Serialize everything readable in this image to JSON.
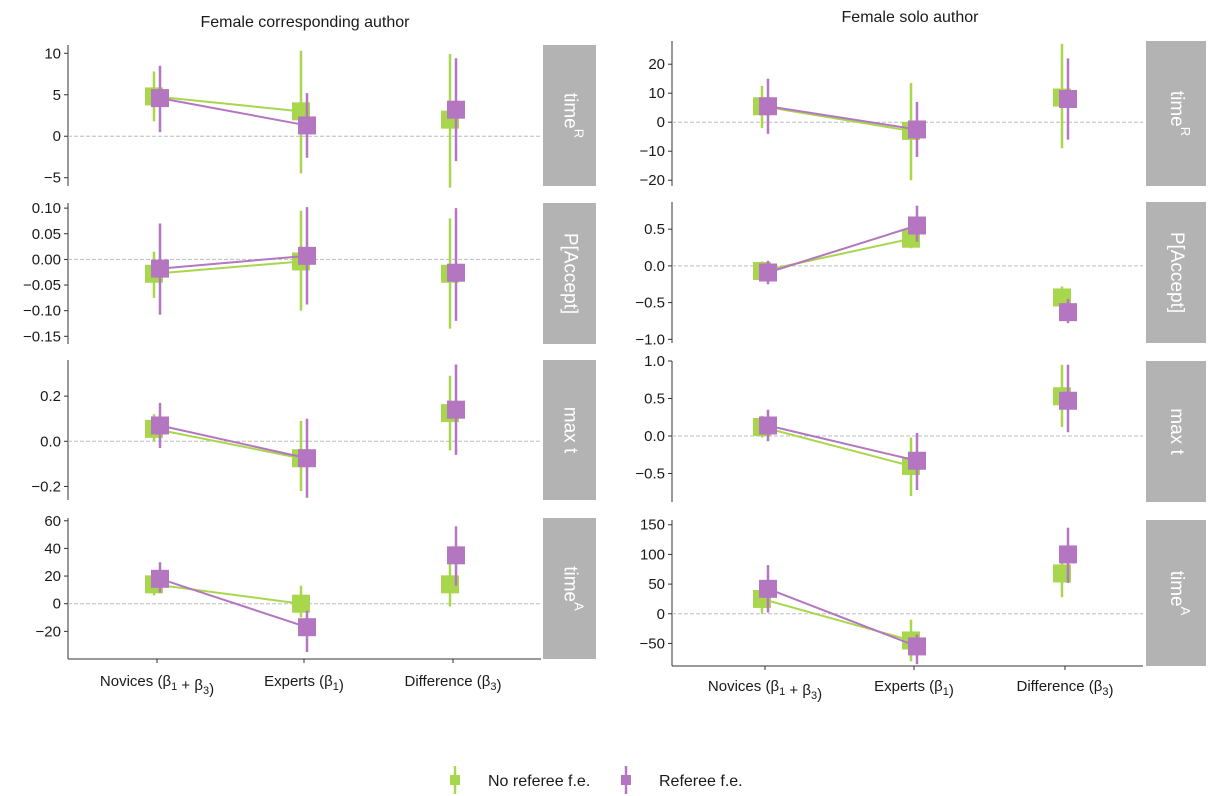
{
  "chart_data": {
    "type": "scatter",
    "x_categories": [
      "Novices (β1 + β3)",
      "Experts (β1)",
      "Difference (β3)"
    ],
    "legend": {
      "placement": "bottom",
      "entries": [
        {
          "key": "no_fe",
          "label": "No referee f.e.",
          "color": "#a8d64c"
        },
        {
          "key": "fe",
          "label": "Referee f.e.",
          "color": "#b476c0"
        }
      ]
    },
    "strip_color": "#b3b3b3",
    "zero_line": true,
    "panels": [
      {
        "title": "Female corresponding author",
        "facets": [
          {
            "strip": "time^R",
            "ylim": [
              -6,
              11
            ],
            "ticks": [
              "10",
              "5",
              "0",
              "−5"
            ],
            "tick_values": [
              10,
              5,
              0,
              -5
            ],
            "series": {
              "no_fe": [
                {
                  "est": 4.8,
                  "lo": 1.8,
                  "hi": 7.8
                },
                {
                  "est": 3.0,
                  "lo": -4.5,
                  "hi": 10.3
                },
                {
                  "est": 2.0,
                  "lo": -6.2,
                  "hi": 9.9
                }
              ],
              "fe": [
                {
                  "est": 4.6,
                  "lo": 0.5,
                  "hi": 8.5
                },
                {
                  "est": 1.3,
                  "lo": -2.6,
                  "hi": 5.2
                },
                {
                  "est": 3.2,
                  "lo": -3.0,
                  "hi": 9.4
                }
              ]
            }
          },
          {
            "strip": "P[Accept]",
            "ylim": [
              -0.165,
              0.11
            ],
            "ticks": [
              "0.10",
              "0.05",
              "0.00",
              "−0.05",
              "−0.10",
              "−0.15"
            ],
            "tick_values": [
              0.1,
              0.05,
              0.0,
              -0.05,
              -0.1,
              -0.15
            ],
            "series": {
              "no_fe": [
                {
                  "est": -0.028,
                  "lo": -0.075,
                  "hi": 0.015
                },
                {
                  "est": -0.004,
                  "lo": -0.1,
                  "hi": 0.095
                },
                {
                  "est": -0.028,
                  "lo": -0.135,
                  "hi": 0.08
                }
              ],
              "fe": [
                {
                  "est": -0.018,
                  "lo": -0.108,
                  "hi": 0.07
                },
                {
                  "est": 0.007,
                  "lo": -0.088,
                  "hi": 0.102
                },
                {
                  "est": -0.026,
                  "lo": -0.12,
                  "hi": 0.1
                }
              ]
            }
          },
          {
            "strip": "max t",
            "ylim": [
              -0.26,
              0.36
            ],
            "ticks": [
              "0.2",
              "0.0",
              "−0.2"
            ],
            "tick_values": [
              0.2,
              0.0,
              -0.2
            ],
            "series": {
              "no_fe": [
                {
                  "est": 0.055,
                  "lo": 0.0,
                  "hi": 0.12
                },
                {
                  "est": -0.075,
                  "lo": -0.22,
                  "hi": 0.09
                },
                {
                  "est": 0.125,
                  "lo": -0.04,
                  "hi": 0.29
                }
              ],
              "fe": [
                {
                  "est": 0.07,
                  "lo": -0.03,
                  "hi": 0.17
                },
                {
                  "est": -0.075,
                  "lo": -0.25,
                  "hi": 0.1
                },
                {
                  "est": 0.14,
                  "lo": -0.06,
                  "hi": 0.34
                }
              ]
            }
          },
          {
            "strip": "time^A",
            "ylim": [
              -40,
              62
            ],
            "ticks": [
              "60",
              "40",
              "20",
              "0",
              "−20"
            ],
            "tick_values": [
              60,
              40,
              20,
              0,
              -20
            ],
            "series": {
              "no_fe": [
                {
                  "est": 14,
                  "lo": 6,
                  "hi": 24
                },
                {
                  "est": 0,
                  "lo": -10,
                  "hi": 13
                },
                {
                  "est": 14,
                  "lo": -2,
                  "hi": 40
                }
              ],
              "fe": [
                {
                  "est": 18,
                  "lo": 8,
                  "hi": 30
                },
                {
                  "est": -17,
                  "lo": -35,
                  "hi": -5
                },
                {
                  "est": 35,
                  "lo": 13,
                  "hi": 56
                }
              ]
            }
          }
        ]
      },
      {
        "title": "Female solo author",
        "facets": [
          {
            "strip": "time^R",
            "ylim": [
              -22,
              28
            ],
            "ticks": [
              "20",
              "10",
              "0",
              "−10",
              "−20"
            ],
            "tick_values": [
              20,
              10,
              0,
              -10,
              -20
            ],
            "series": {
              "no_fe": [
                {
                  "est": 5.5,
                  "lo": -2,
                  "hi": 12.5
                },
                {
                  "est": -3,
                  "lo": -20,
                  "hi": 13.5
                },
                {
                  "est": 8.5,
                  "lo": -9,
                  "hi": 27
                }
              ],
              "fe": [
                {
                  "est": 5.5,
                  "lo": -4,
                  "hi": 15
                },
                {
                  "est": -2.5,
                  "lo": -12,
                  "hi": 7
                },
                {
                  "est": 8,
                  "lo": -6,
                  "hi": 22
                }
              ]
            }
          },
          {
            "strip": "P[Accept]",
            "ylim": [
              -1.05,
              0.87
            ],
            "ticks": [
              "0.5",
              "0.0",
              "−0.5",
              "−1.0"
            ],
            "tick_values": [
              0.5,
              0.0,
              -0.5,
              -1.0
            ],
            "series": {
              "no_fe": [
                {
                  "est": -0.07,
                  "lo": -0.2,
                  "hi": 0.06
                },
                {
                  "est": 0.37,
                  "lo": 0.24,
                  "hi": 0.5
                },
                {
                  "est": -0.43,
                  "lo": -0.58,
                  "hi": -0.28
                }
              ],
              "fe": [
                {
                  "est": -0.09,
                  "lo": -0.25,
                  "hi": 0.07
                },
                {
                  "est": 0.55,
                  "lo": 0.33,
                  "hi": 0.82
                },
                {
                  "est": -0.63,
                  "lo": -0.78,
                  "hi": -0.45
                }
              ]
            }
          },
          {
            "strip": "max t",
            "ylim": [
              -0.88,
              1.0
            ],
            "ticks": [
              "1.0",
              "0.5",
              "0.0",
              "−0.5"
            ],
            "tick_values": [
              1.0,
              0.5,
              0.0,
              -0.5
            ],
            "series": {
              "no_fe": [
                {
                  "est": 0.12,
                  "lo": -0.02,
                  "hi": 0.27
                },
                {
                  "est": -0.4,
                  "lo": -0.8,
                  "hi": -0.02
                },
                {
                  "est": 0.53,
                  "lo": 0.12,
                  "hi": 0.95
                }
              ],
              "fe": [
                {
                  "est": 0.14,
                  "lo": -0.07,
                  "hi": 0.35
                },
                {
                  "est": -0.33,
                  "lo": -0.72,
                  "hi": 0.04
                },
                {
                  "est": 0.47,
                  "lo": 0.05,
                  "hi": 0.95
                }
              ]
            }
          },
          {
            "strip": "time^A",
            "ylim": [
              -88,
              158
            ],
            "ticks": [
              "150",
              "100",
              "50",
              "0",
              "−50"
            ],
            "tick_values": [
              150,
              100,
              50,
              0,
              -50
            ],
            "series": {
              "no_fe": [
                {
                  "est": 25,
                  "lo": 0,
                  "hi": 50
                },
                {
                  "est": -45,
                  "lo": -80,
                  "hi": -10
                },
                {
                  "est": 68,
                  "lo": 28,
                  "hi": 100
                }
              ],
              "fe": [
                {
                  "est": 42,
                  "lo": 2,
                  "hi": 82
                },
                {
                  "est": -55,
                  "lo": -85,
                  "hi": -35
                },
                {
                  "est": 100,
                  "lo": 52,
                  "hi": 145
                }
              ]
            }
          }
        ]
      }
    ]
  }
}
